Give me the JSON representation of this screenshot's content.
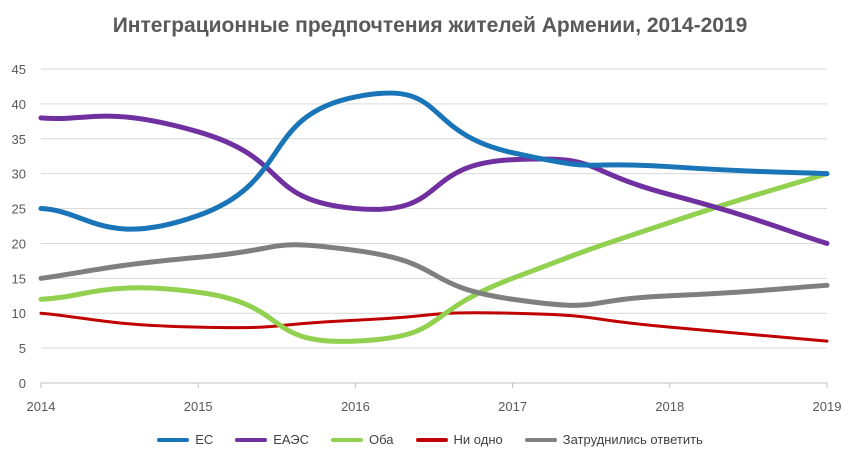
{
  "chart_data": {
    "type": "line",
    "title": "Интеграционные предпочтения жителей Армении, 2014-2019",
    "x": [
      "2014",
      "2015",
      "2016",
      "2017",
      "2018",
      "2019"
    ],
    "ylim": [
      0,
      45
    ],
    "yticks": [
      "0",
      "5",
      "10",
      "15",
      "20",
      "25",
      "30",
      "35",
      "40",
      "45"
    ],
    "grid": true,
    "legend_position": "bottom",
    "series": [
      {
        "name": "ЕС",
        "color": "#1A74B8",
        "values": [
          25,
          24,
          41,
          33,
          31,
          30
        ]
      },
      {
        "name": "ЕАЭС",
        "color": "#7030A0",
        "values": [
          38,
          36,
          25,
          32,
          27,
          20
        ]
      },
      {
        "name": "Оба",
        "color": "#92D050",
        "values": [
          12,
          13,
          6,
          15,
          23,
          30
        ]
      },
      {
        "name": "Ни одно",
        "color": "#C00000",
        "values": [
          10,
          8,
          9,
          10,
          8,
          6
        ]
      },
      {
        "name": "Затруднились ответить",
        "color": "#7F7F7F",
        "values": [
          15,
          18,
          19,
          12,
          12.5,
          14
        ]
      }
    ]
  }
}
